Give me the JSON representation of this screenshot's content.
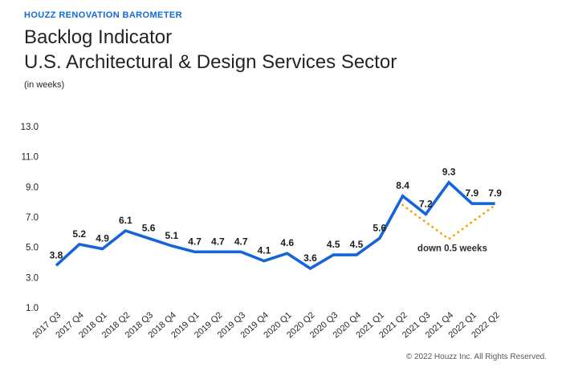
{
  "header": {
    "kicker": "HOUZZ RENOVATION BAROMETER",
    "title_line1": "Backlog Indicator",
    "title_line2": "U.S. Architectural & Design Services Sector",
    "subtitle": "(in weeks)"
  },
  "footer": {
    "copyright": "© 2022 Houzz Inc. All Rights Reserved."
  },
  "colors": {
    "brand_blue": "#1169d8",
    "line_blue": "#1565d8",
    "annotation_orange": "#f9a81a",
    "text_dark": "#222426",
    "label_dark": "#1d1d1f",
    "footer_gray": "#595959"
  },
  "chart_data": {
    "type": "line",
    "title": "Backlog Indicator — U.S. Architectural & Design Services Sector",
    "ylabel": "weeks",
    "categories": [
      "2017 Q3",
      "2017 Q4",
      "2018 Q1",
      "2018 Q2",
      "2018 Q3",
      "2018 Q4",
      "2019 Q1",
      "2019 Q2",
      "2019 Q3",
      "2019 Q4",
      "2020 Q1",
      "2020 Q2",
      "2020 Q3",
      "2020 Q4",
      "2021 Q1",
      "2021 Q2",
      "2021 Q3",
      "2021 Q4",
      "2022 Q1",
      "2022 Q2"
    ],
    "series": [
      {
        "name": "Backlog (weeks)",
        "values": [
          3.8,
          5.2,
          4.9,
          6.1,
          5.6,
          5.1,
          4.7,
          4.7,
          4.7,
          4.1,
          4.6,
          3.6,
          4.5,
          4.5,
          5.6,
          8.4,
          7.2,
          9.3,
          7.9,
          7.9
        ]
      }
    ],
    "y_ticks": [
      13.0,
      11.0,
      9.0,
      7.0,
      5.0,
      3.0,
      1.0
    ],
    "ylim": [
      0,
      14
    ],
    "grid": false,
    "legend": "none",
    "data_labels": true,
    "annotation": {
      "label": "down 0.5 weeks",
      "guide_points": [
        {
          "index": 15,
          "value": 7.8
        },
        {
          "index": 17,
          "value": 5.55
        },
        {
          "index": 19,
          "value": 7.8
        }
      ],
      "label_position": {
        "index": 17.15,
        "value": 4.75
      }
    }
  }
}
